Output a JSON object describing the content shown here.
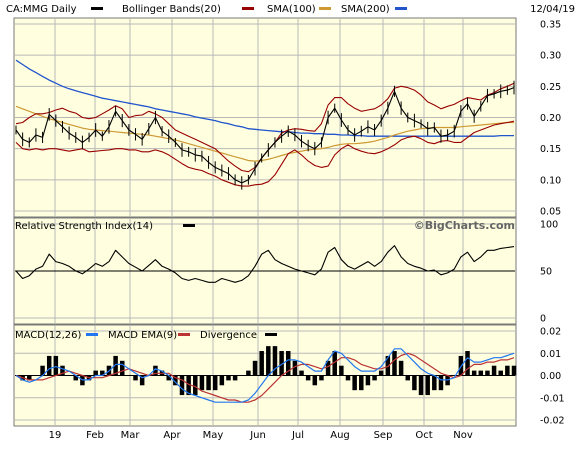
{
  "header": {
    "symbol_label": "CA:MMG Daily",
    "bb_label": "Bollinger Bands(20)",
    "sma100_label": "SMA(100)",
    "sma200_label": "SMA(200)",
    "date": "12/04/19"
  },
  "rsi_panel": {
    "label": "Relative Strength Index(14)",
    "watermark": "©BigCharts.com"
  },
  "macd_panel": {
    "macd_label": "MACD(12,26)",
    "ema_label": "MACD EMA(9)",
    "div_label": "Divergence"
  },
  "colors": {
    "price": "#000000",
    "bollinger": "#990000",
    "sma100": "#cc9933",
    "sma200": "#2255cc",
    "macd": "#2277ee",
    "ema": "#bb3333",
    "panel_bg": "#ffffe0"
  },
  "chart_data": [
    {
      "type": "ohlc-line",
      "panel": "price",
      "title": "CA:MMG Daily",
      "y_range": [
        0.05,
        0.35
      ],
      "y_ticks": [
        "0.35",
        "0.30",
        "0.25",
        "0.20",
        "0.15",
        "0.10",
        "0.05"
      ],
      "x_labels": [
        "19",
        "Feb",
        "Mar",
        "Apr",
        "May",
        "Jun",
        "Jul",
        "Aug",
        "Sep",
        "Oct",
        "Nov"
      ],
      "grid": true,
      "series": [
        {
          "name": "CA:MMG Daily",
          "values": [
            0.18,
            0.165,
            0.16,
            0.172,
            0.168,
            0.205,
            0.195,
            0.185,
            0.175,
            0.168,
            0.16,
            0.168,
            0.18,
            0.17,
            0.185,
            0.21,
            0.195,
            0.18,
            0.173,
            0.165,
            0.182,
            0.2,
            0.178,
            0.17,
            0.16,
            0.148,
            0.145,
            0.14,
            0.138,
            0.128,
            0.12,
            0.115,
            0.11,
            0.1,
            0.095,
            0.1,
            0.118,
            0.135,
            0.148,
            0.16,
            0.17,
            0.178,
            0.172,
            0.162,
            0.155,
            0.15,
            0.16,
            0.2,
            0.215,
            0.196,
            0.18,
            0.172,
            0.178,
            0.185,
            0.18,
            0.195,
            0.215,
            0.242,
            0.215,
            0.2,
            0.195,
            0.19,
            0.182,
            0.184,
            0.17,
            0.172,
            0.178,
            0.21,
            0.222,
            0.202,
            0.218,
            0.235,
            0.238,
            0.242,
            0.244,
            0.248
          ]
        },
        {
          "name": "Bollinger Upper",
          "values": [
            0.19,
            0.192,
            0.2,
            0.206,
            0.206,
            0.208,
            0.212,
            0.215,
            0.21,
            0.207,
            0.2,
            0.198,
            0.2,
            0.206,
            0.212,
            0.219,
            0.214,
            0.2,
            0.203,
            0.204,
            0.21,
            0.206,
            0.2,
            0.19,
            0.18,
            0.175,
            0.17,
            0.165,
            0.16,
            0.155,
            0.15,
            0.14,
            0.13,
            0.122,
            0.115,
            0.113,
            0.12,
            0.135,
            0.148,
            0.16,
            0.175,
            0.18,
            0.182,
            0.181,
            0.179,
            0.178,
            0.19,
            0.22,
            0.232,
            0.232,
            0.222,
            0.215,
            0.21,
            0.212,
            0.214,
            0.22,
            0.23,
            0.247,
            0.25,
            0.248,
            0.244,
            0.236,
            0.225,
            0.22,
            0.214,
            0.218,
            0.221,
            0.227,
            0.232,
            0.23,
            0.228,
            0.236,
            0.24,
            0.246,
            0.25,
            0.255
          ]
        },
        {
          "name": "Bollinger Lower",
          "values": [
            0.16,
            0.15,
            0.148,
            0.15,
            0.148,
            0.15,
            0.15,
            0.148,
            0.146,
            0.148,
            0.15,
            0.145,
            0.146,
            0.147,
            0.148,
            0.15,
            0.15,
            0.148,
            0.148,
            0.145,
            0.145,
            0.148,
            0.145,
            0.14,
            0.133,
            0.126,
            0.12,
            0.117,
            0.115,
            0.11,
            0.106,
            0.1,
            0.096,
            0.092,
            0.09,
            0.09,
            0.092,
            0.093,
            0.097,
            0.108,
            0.125,
            0.142,
            0.148,
            0.14,
            0.13,
            0.123,
            0.12,
            0.122,
            0.14,
            0.15,
            0.156,
            0.15,
            0.146,
            0.143,
            0.142,
            0.145,
            0.15,
            0.156,
            0.164,
            0.168,
            0.17,
            0.166,
            0.16,
            0.158,
            0.162,
            0.163,
            0.16,
            0.16,
            0.168,
            0.176,
            0.18,
            0.184,
            0.188,
            0.19,
            0.192,
            0.194
          ]
        },
        {
          "name": "SMA(100)",
          "values": [
            0.218,
            0.214,
            0.21,
            0.206,
            0.202,
            0.198,
            0.195,
            0.192,
            0.189,
            0.186,
            0.183,
            0.181,
            0.18,
            0.179,
            0.178,
            0.177,
            0.176,
            0.175,
            0.174,
            0.173,
            0.172,
            0.17,
            0.168,
            0.166,
            0.164,
            0.161,
            0.158,
            0.155,
            0.152,
            0.149,
            0.146,
            0.143,
            0.14,
            0.137,
            0.134,
            0.131,
            0.13,
            0.131,
            0.133,
            0.136,
            0.139,
            0.142,
            0.144,
            0.146,
            0.148,
            0.149,
            0.15,
            0.152,
            0.155,
            0.157,
            0.158,
            0.158,
            0.159,
            0.16,
            0.162,
            0.165,
            0.168,
            0.172,
            0.175,
            0.178,
            0.18,
            0.182,
            0.183,
            0.184,
            0.184,
            0.184,
            0.184,
            0.185,
            0.186,
            0.187,
            0.188,
            0.189,
            0.19,
            0.191,
            0.192,
            0.192
          ]
        },
        {
          "name": "SMA(200)",
          "values": [
            0.292,
            0.285,
            0.278,
            0.272,
            0.266,
            0.26,
            0.255,
            0.25,
            0.246,
            0.243,
            0.24,
            0.237,
            0.234,
            0.231,
            0.229,
            0.227,
            0.225,
            0.223,
            0.221,
            0.219,
            0.217,
            0.214,
            0.212,
            0.21,
            0.208,
            0.206,
            0.204,
            0.201,
            0.199,
            0.197,
            0.195,
            0.192,
            0.19,
            0.187,
            0.185,
            0.182,
            0.181,
            0.18,
            0.179,
            0.178,
            0.177,
            0.177,
            0.176,
            0.175,
            0.175,
            0.174,
            0.174,
            0.173,
            0.173,
            0.172,
            0.172,
            0.171,
            0.171,
            0.17,
            0.17,
            0.17,
            0.17,
            0.17,
            0.17,
            0.17,
            0.17,
            0.17,
            0.17,
            0.17,
            0.17,
            0.17,
            0.17,
            0.17,
            0.17,
            0.17,
            0.17,
            0.17,
            0.17,
            0.171,
            0.171,
            0.171
          ]
        }
      ]
    },
    {
      "type": "line",
      "panel": "rsi",
      "title": "Relative Strength Index(14)",
      "y_range": [
        0,
        100
      ],
      "y_ticks": [
        "100",
        "50",
        "0"
      ],
      "reference_line": 50,
      "grid": true,
      "series": [
        {
          "name": "Relative Strength Index(14)",
          "values": [
            50,
            42,
            45,
            52,
            55,
            68,
            60,
            58,
            55,
            50,
            47,
            52,
            58,
            55,
            60,
            72,
            65,
            58,
            54,
            50,
            56,
            62,
            55,
            52,
            48,
            42,
            40,
            42,
            40,
            38,
            38,
            42,
            40,
            38,
            40,
            45,
            55,
            68,
            72,
            62,
            58,
            55,
            52,
            50,
            48,
            46,
            52,
            70,
            75,
            62,
            55,
            52,
            56,
            60,
            55,
            60,
            70,
            77,
            65,
            58,
            55,
            53,
            50,
            51,
            46,
            48,
            52,
            65,
            70,
            60,
            65,
            72,
            72,
            74,
            75,
            76
          ]
        }
      ]
    },
    {
      "type": "line",
      "panel": "macd",
      "title": "MACD(12,26)",
      "y_range": [
        -0.02,
        0.02
      ],
      "y_ticks": [
        "0.02",
        "0.01",
        "0.00",
        "-0.01",
        "-0.02"
      ],
      "grid": true,
      "series": [
        {
          "name": "MACD(12,26)",
          "values": [
            0.0,
            -0.002,
            -0.003,
            -0.002,
            0.0,
            0.003,
            0.004,
            0.003,
            0.002,
            0.0,
            -0.002,
            -0.002,
            0.0,
            0.0,
            0.002,
            0.005,
            0.005,
            0.003,
            0.001,
            -0.001,
            0.0,
            0.003,
            0.002,
            0.0,
            -0.003,
            -0.006,
            -0.008,
            -0.009,
            -0.01,
            -0.011,
            -0.012,
            -0.012,
            -0.012,
            -0.012,
            -0.012,
            -0.011,
            -0.008,
            -0.004,
            0.0,
            0.003,
            0.005,
            0.007,
            0.007,
            0.006,
            0.004,
            0.002,
            0.002,
            0.007,
            0.011,
            0.01,
            0.007,
            0.004,
            0.002,
            0.002,
            0.002,
            0.004,
            0.008,
            0.012,
            0.012,
            0.009,
            0.006,
            0.003,
            0.001,
            0.0,
            -0.002,
            -0.002,
            -0.001,
            0.004,
            0.008,
            0.006,
            0.006,
            0.007,
            0.008,
            0.008,
            0.009,
            0.01
          ]
        },
        {
          "name": "MACD EMA(9)",
          "values": [
            0.0,
            -0.001,
            -0.002,
            -0.002,
            -0.002,
            -0.001,
            0.0,
            0.001,
            0.002,
            0.001,
            0.0,
            -0.001,
            -0.001,
            -0.001,
            0.0,
            0.001,
            0.002,
            0.003,
            0.002,
            0.001,
            0.0,
            0.001,
            0.001,
            0.001,
            -0.001,
            -0.002,
            -0.004,
            -0.005,
            -0.007,
            -0.008,
            -0.009,
            -0.01,
            -0.011,
            -0.011,
            -0.012,
            -0.012,
            -0.011,
            -0.009,
            -0.006,
            -0.003,
            0.0,
            0.002,
            0.004,
            0.005,
            0.005,
            0.004,
            0.003,
            0.004,
            0.006,
            0.008,
            0.008,
            0.007,
            0.005,
            0.004,
            0.003,
            0.003,
            0.004,
            0.007,
            0.009,
            0.01,
            0.009,
            0.007,
            0.005,
            0.003,
            0.001,
            0.0,
            -0.001,
            0.0,
            0.003,
            0.005,
            0.005,
            0.006,
            0.006,
            0.007,
            0.007,
            0.008
          ]
        }
      ]
    }
  ]
}
